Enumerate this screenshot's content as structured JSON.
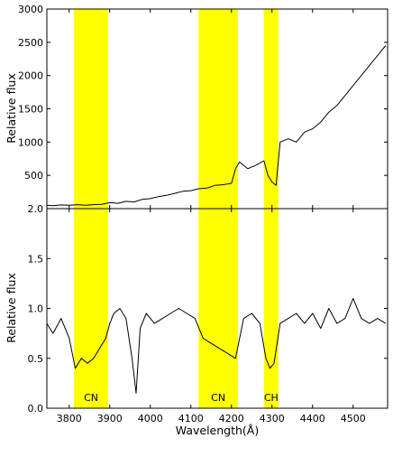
{
  "chart_data": [
    {
      "type": "line",
      "panel": "top",
      "title": "",
      "xlabel": "",
      "ylabel": "Relative flux",
      "xlim": [
        3745,
        4585
      ],
      "ylim": [
        0,
        3000
      ],
      "yticks": [
        0,
        500,
        1000,
        1500,
        2000,
        2500,
        3000
      ],
      "ytick_labels": [
        "",
        "500",
        "1000",
        "1500",
        "2000",
        "2500",
        "3000"
      ],
      "grid": false,
      "line_color": "#000000",
      "shaded_bands": [
        {
          "x0": 3812,
          "x1": 3896,
          "color": "#ffff00"
        },
        {
          "x0": 4119,
          "x1": 4216,
          "color": "#ffff00"
        },
        {
          "x0": 4280,
          "x1": 4316,
          "color": "#ffff00"
        }
      ],
      "series": [
        {
          "x": [
            3745,
            3760,
            3780,
            3800,
            3820,
            3840,
            3860,
            3880,
            3900,
            3920,
            3940,
            3960,
            3980,
            4000,
            4020,
            4040,
            4060,
            4080,
            4100,
            4120,
            4140,
            4160,
            4180,
            4200,
            4210,
            4220,
            4240,
            4260,
            4280,
            4290,
            4300,
            4310,
            4320,
            4340,
            4360,
            4380,
            4400,
            4420,
            4440,
            4460,
            4480,
            4500,
            4520,
            4540,
            4560,
            4580
          ],
          "y": [
            50,
            45,
            55,
            50,
            60,
            50,
            60,
            65,
            90,
            80,
            110,
            100,
            140,
            150,
            180,
            200,
            230,
            260,
            270,
            300,
            310,
            350,
            360,
            380,
            600,
            700,
            600,
            650,
            720,
            500,
            400,
            350,
            1000,
            1050,
            1000,
            1150,
            1200,
            1300,
            1450,
            1550,
            1700,
            1850,
            2000,
            2150,
            2300,
            2450
          ]
        }
      ]
    },
    {
      "type": "line",
      "panel": "bottom",
      "title": "",
      "xlabel": "Wavelength(Å)",
      "ylabel": "Relative flux",
      "xlim": [
        3745,
        4585
      ],
      "ylim": [
        0,
        2.0
      ],
      "yticks": [
        0.0,
        0.5,
        1.0,
        1.5,
        2.0
      ],
      "ytick_labels": [
        "0.0",
        "0.5",
        "1.0",
        "1.5",
        "2.0"
      ],
      "xticks": [
        3800,
        3900,
        4000,
        4100,
        4200,
        4300,
        4400,
        4500
      ],
      "xtick_labels": [
        "3800",
        "3900",
        "4000",
        "4100",
        "4200",
        "4300",
        "4400",
        "4500"
      ],
      "grid": false,
      "line_color": "#000000",
      "shaded_bands": [
        {
          "x0": 3812,
          "x1": 3896,
          "label": "CN",
          "color": "#ffff00"
        },
        {
          "x0": 4119,
          "x1": 4216,
          "label": "CN",
          "color": "#ffff00"
        },
        {
          "x0": 4280,
          "x1": 4316,
          "label": "CH",
          "color": "#ffff00"
        }
      ],
      "series": [
        {
          "x": [
            3745,
            3760,
            3780,
            3800,
            3815,
            3830,
            3845,
            3860,
            3875,
            3890,
            3900,
            3910,
            3925,
            3940,
            3955,
            3965,
            3975,
            3990,
            4010,
            4030,
            4050,
            4070,
            4090,
            4110,
            4130,
            4150,
            4170,
            4190,
            4210,
            4230,
            4250,
            4270,
            4285,
            4295,
            4305,
            4320,
            4340,
            4360,
            4380,
            4400,
            4420,
            4440,
            4460,
            4480,
            4500,
            4520,
            4540,
            4560,
            4580
          ],
          "y": [
            0.85,
            0.75,
            0.9,
            0.7,
            0.4,
            0.5,
            0.45,
            0.5,
            0.6,
            0.7,
            0.85,
            0.95,
            1.0,
            0.9,
            0.5,
            0.15,
            0.8,
            0.95,
            0.85,
            0.9,
            0.95,
            1.0,
            0.95,
            0.9,
            0.7,
            0.65,
            0.6,
            0.55,
            0.5,
            0.9,
            0.95,
            0.85,
            0.5,
            0.4,
            0.45,
            0.85,
            0.9,
            0.95,
            0.85,
            0.95,
            0.8,
            1.0,
            0.85,
            0.9,
            1.1,
            0.9,
            0.85,
            0.9,
            0.85
          ]
        }
      ]
    }
  ]
}
